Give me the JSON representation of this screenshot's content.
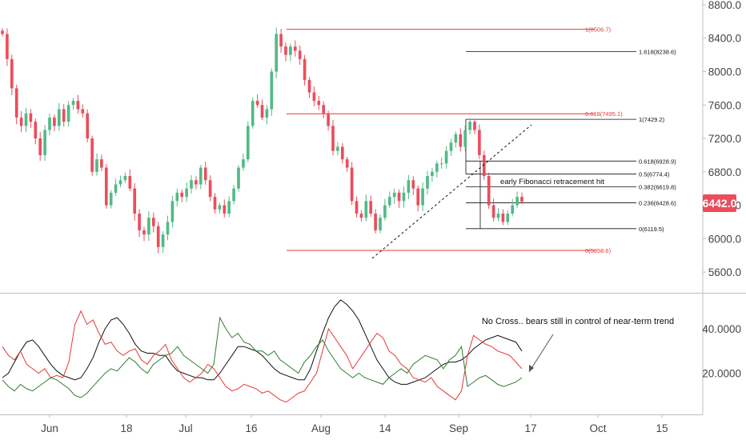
{
  "symbol_price_label": "6442.0",
  "colors": {
    "up": "#26a69a",
    "up_candle": "#53b987",
    "down": "#eb4d5c",
    "fib_red": "#e53935",
    "fib_black": "#111111",
    "trend_line": "#111111",
    "plus_di": "#2e7d32",
    "minus_di": "#e53935",
    "adx": "#111111",
    "axis_text": "#444444",
    "price_tag_bg": "#eb4d5c"
  },
  "chart_data": [
    {
      "type": "candlestick",
      "title": "",
      "ylim": [
        5300,
        8900
      ],
      "y_ticks": [
        "8800.0",
        "8400.0",
        "8000.0",
        "7600.0",
        "7200.0",
        "6800.0",
        "6400.0",
        "6000.0",
        "5600.0"
      ],
      "y_tick_values": [
        8800,
        8400,
        8000,
        7600,
        7200,
        6800,
        6400,
        6000,
        5600
      ],
      "x_ticks": [
        "Jun",
        "18",
        "Jul",
        "16",
        "Aug",
        "14",
        "Sep",
        "17",
        "Oct",
        "15"
      ],
      "last_price": 6442.0,
      "fib_levels_major": [
        {
          "label": "1(8506.7)",
          "value": 8506.7
        },
        {
          "label": "0.618(7495.1)",
          "value": 7495.1
        },
        {
          "label": "0(5858.6)",
          "value": 5858.6
        }
      ],
      "fib_levels_minor": [
        {
          "label": "1.618(8238.6)",
          "value": 8238.6
        },
        {
          "label": "1(7429.2)",
          "value": 7429.2
        },
        {
          "label": "0.618(6928.9)",
          "value": 6928.9
        },
        {
          "label": "0.5(6774.4)",
          "value": 6774.4
        },
        {
          "label": "0.382(6619.8)",
          "value": 6619.8
        },
        {
          "label": "0.236(6428.6)",
          "value": 6428.6
        },
        {
          "label": "0(6119.5)",
          "value": 6119.5
        }
      ],
      "annotation": "early Fibonacci retracement hit",
      "closes": [
        8450,
        8150,
        7800,
        7450,
        7350,
        7500,
        7400,
        7200,
        7000,
        7300,
        7450,
        7350,
        7550,
        7400,
        7600,
        7650,
        7550,
        7500,
        7200,
        6800,
        6950,
        6850,
        6400,
        6550,
        6650,
        6700,
        6750,
        6600,
        6300,
        6100,
        6050,
        6250,
        6150,
        5900,
        6050,
        6200,
        6450,
        6550,
        6500,
        6600,
        6700,
        6650,
        6850,
        6700,
        6500,
        6350,
        6400,
        6300,
        6450,
        6600,
        6850,
        6950,
        7350,
        7650,
        7600,
        7450,
        7550,
        8000,
        8450,
        8300,
        8200,
        8300,
        8250,
        8150,
        7900,
        7750,
        7650,
        7600,
        7500,
        7350,
        7050,
        7100,
        6950,
        6850,
        6450,
        6300,
        6250,
        6450,
        6300,
        6100,
        6250,
        6400,
        6500,
        6550,
        6450,
        6550,
        6700,
        6600,
        6400,
        6600,
        6750,
        6800,
        6900,
        6900,
        7050,
        7150,
        7250,
        7100,
        7300,
        7400,
        7300,
        7000,
        6750,
        6400,
        6250,
        6300,
        6200,
        6300,
        6400,
        6500,
        6442
      ]
    },
    {
      "type": "line",
      "title": "",
      "ylim": [
        0,
        58
      ],
      "y_ticks": [
        "40.0000",
        "20.0000"
      ],
      "y_tick_values": [
        40,
        20
      ],
      "annotation": "No Cross.. bears still in control of near-term trend",
      "series": [
        {
          "key": "adx",
          "values": [
            18,
            20,
            25,
            30,
            34,
            35,
            32,
            28,
            24,
            21,
            19,
            18,
            17,
            18,
            22,
            27,
            34,
            40,
            44,
            45,
            42,
            38,
            33,
            30,
            29,
            29,
            28,
            28,
            24,
            21,
            20,
            19,
            18,
            18,
            17,
            17,
            20,
            24,
            28,
            32,
            32,
            31,
            30,
            28,
            25,
            22,
            20,
            19,
            18,
            17,
            17,
            22,
            30,
            38,
            45,
            50,
            53,
            51,
            48,
            44,
            38,
            32,
            26,
            22,
            18,
            16,
            15,
            15,
            16,
            17,
            18,
            20,
            22,
            24,
            25,
            25,
            26,
            28,
            31,
            33,
            35,
            36,
            37,
            36,
            35,
            34,
            30
          ]
        },
        {
          "key": "minus_di",
          "values": [
            32,
            28,
            26,
            30,
            24,
            22,
            20,
            22,
            18,
            19,
            18,
            25,
            42,
            48,
            42,
            44,
            38,
            33,
            34,
            30,
            28,
            30,
            31,
            26,
            24,
            28,
            30,
            33,
            26,
            22,
            18,
            16,
            18,
            20,
            24,
            22,
            18,
            14,
            12,
            13,
            15,
            14,
            13,
            11,
            12,
            10,
            8,
            7,
            9,
            11,
            12,
            16,
            20,
            30,
            40,
            36,
            32,
            28,
            22,
            26,
            30,
            34,
            38,
            36,
            30,
            28,
            24,
            22,
            18,
            17,
            16,
            18,
            14,
            12,
            10,
            8,
            12,
            28,
            37,
            35,
            33,
            32,
            30,
            29,
            28,
            25,
            22
          ]
        },
        {
          "key": "plus_di",
          "values": [
            17,
            14,
            12,
            15,
            13,
            12,
            14,
            16,
            18,
            17,
            15,
            13,
            10,
            9,
            11,
            14,
            17,
            20,
            22,
            21,
            24,
            27,
            25,
            22,
            20,
            24,
            26,
            28,
            29,
            32,
            28,
            26,
            24,
            22,
            20,
            24,
            45,
            40,
            36,
            38,
            34,
            33,
            30,
            30,
            28,
            30,
            26,
            24,
            22,
            20,
            25,
            28,
            32,
            35,
            30,
            26,
            22,
            20,
            18,
            20,
            18,
            17,
            16,
            15,
            18,
            20,
            22,
            20,
            24,
            26,
            28,
            27,
            26,
            22,
            26,
            28,
            32,
            14,
            16,
            18,
            19,
            17,
            15,
            14,
            15,
            16,
            18
          ]
        }
      ]
    }
  ]
}
